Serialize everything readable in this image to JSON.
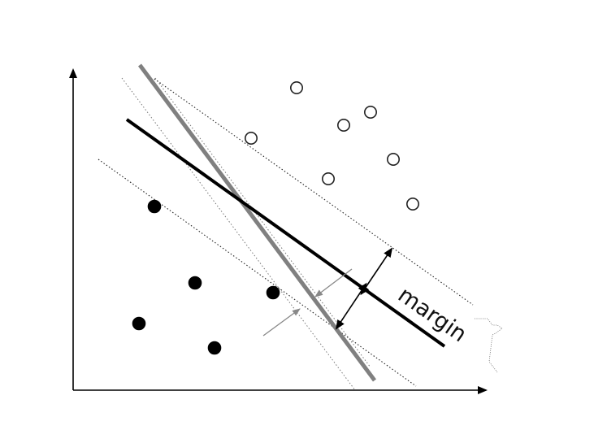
{
  "labels": {
    "margin": "margin"
  },
  "points": {
    "class_open": {
      "fill": "#ffffff",
      "stroke": "#222222",
      "count": 7
    },
    "class_filled": {
      "fill": "#000000",
      "stroke": "#000000",
      "count": 6
    }
  },
  "lines": {
    "optimal_hyperplane": {
      "color": "#000000"
    },
    "alternative_hyperplane": {
      "color": "#808080"
    },
    "margin_boundaries": {
      "color": "#222222",
      "style": "dotted"
    },
    "alternative_margin_boundaries": {
      "color": "#777777",
      "style": "dotted"
    }
  },
  "colors": {
    "background": "#ffffff",
    "axis": "#000000",
    "alt_arrow": "#888888"
  }
}
